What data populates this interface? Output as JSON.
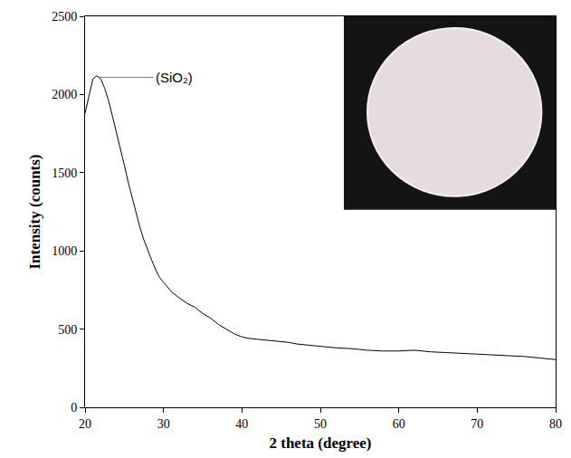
{
  "chart_data": {
    "type": "line",
    "x_label": "2 theta (degree)",
    "y_label": "Intensity (counts)",
    "color": "#000000",
    "grid": false,
    "x": [
      20,
      20.5,
      21,
      21.5,
      22,
      22.5,
      23,
      23.5,
      24,
      24.5,
      25,
      25.5,
      26,
      26.5,
      27,
      27.5,
      28,
      28.5,
      29,
      29.5,
      30,
      31,
      32,
      33,
      34,
      35,
      36,
      37,
      38,
      39,
      40,
      41,
      42,
      43,
      44,
      45,
      46,
      47,
      48,
      49,
      50,
      52,
      54,
      56,
      58,
      60,
      62,
      64,
      66,
      68,
      70,
      72,
      74,
      76,
      78,
      80
    ],
    "values": [
      1880,
      2000,
      2100,
      2120,
      2100,
      2040,
      1960,
      1860,
      1760,
      1650,
      1550,
      1440,
      1340,
      1240,
      1150,
      1070,
      1000,
      940,
      880,
      830,
      800,
      740,
      700,
      665,
      640,
      600,
      570,
      530,
      500,
      470,
      450,
      440,
      435,
      430,
      425,
      420,
      415,
      405,
      400,
      395,
      390,
      380,
      375,
      365,
      360,
      360,
      365,
      355,
      350,
      345,
      340,
      335,
      330,
      325,
      315,
      305
    ],
    "xlim": [
      20,
      80
    ],
    "ylim": [
      0,
      2500
    ],
    "xticks": [
      20,
      30,
      40,
      50,
      60,
      70,
      80
    ],
    "yticks": [
      0,
      500,
      1000,
      1500,
      2000,
      2500
    ],
    "annotations": [
      {
        "text": "(SiO₂)",
        "x": 21.8,
        "y": 2110
      }
    ]
  }
}
